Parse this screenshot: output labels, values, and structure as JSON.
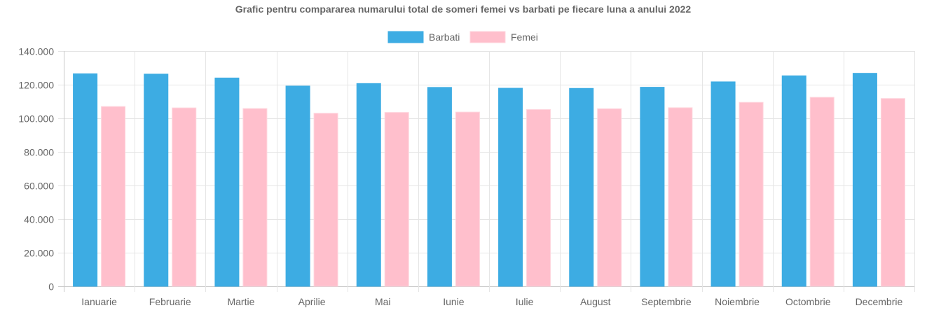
{
  "chart_data": {
    "type": "bar",
    "title": "Grafic pentru compararea numarului total de someri femei vs barbati pe fiecare luna a anului 2022",
    "categories": [
      "Ianuarie",
      "Februarie",
      "Martie",
      "Aprilie",
      "Mai",
      "Iunie",
      "Iulie",
      "August",
      "Septembrie",
      "Noiembrie",
      "Octombrie",
      "Decembrie"
    ],
    "series": [
      {
        "name": "Barbati",
        "color": "#3dace3",
        "border": "#3dace3",
        "values": [
          126500,
          126300,
          124000,
          119200,
          120700,
          118400,
          117900,
          117800,
          118500,
          121700,
          125300,
          126800
        ]
      },
      {
        "name": "Femei",
        "color": "#ffbfcc",
        "border": "#ffd6de",
        "values": [
          107000,
          106200,
          105800,
          103000,
          103500,
          103700,
          105200,
          105700,
          106300,
          109500,
          112500,
          111800
        ]
      }
    ],
    "ylim": [
      0,
      140000
    ],
    "yticks": [
      "0",
      "20.000",
      "40.000",
      "60.000",
      "80.000",
      "100.000",
      "120.000",
      "140.000"
    ],
    "ytick_values": [
      0,
      20000,
      40000,
      60000,
      80000,
      100000,
      120000,
      140000
    ],
    "xlabel": "",
    "ylabel": "",
    "grid": true,
    "legend_position": "top"
  }
}
